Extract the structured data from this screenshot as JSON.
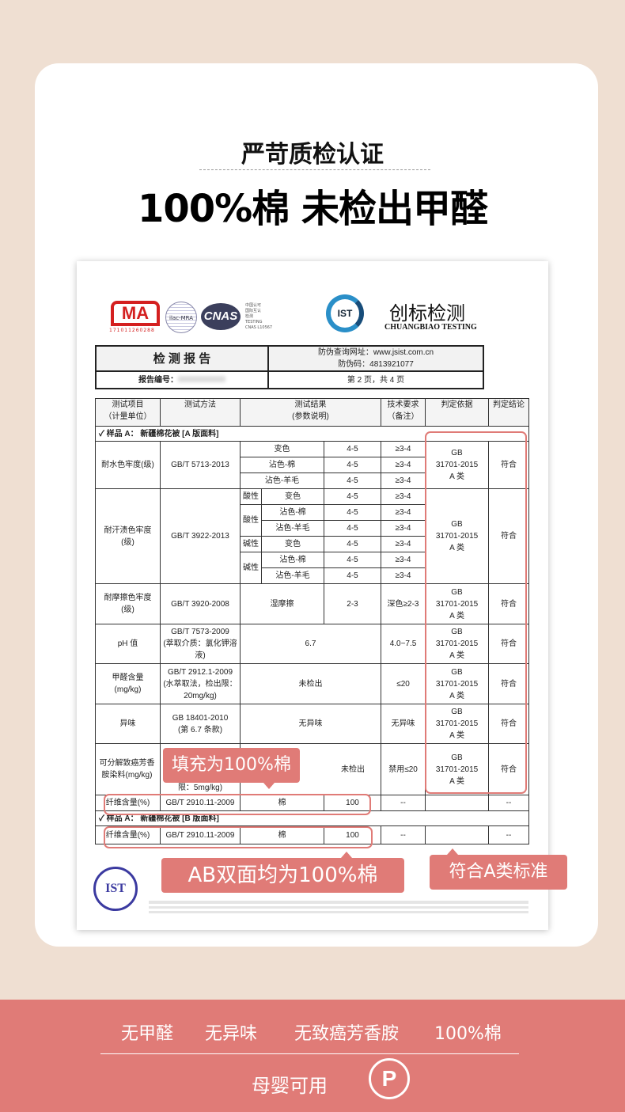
{
  "header": {
    "subtitle": "严苛质检认证",
    "title": "100%棉 未检出甲醛"
  },
  "logos": {
    "cma": "MA",
    "cma_number": "171011260288",
    "ilac": "ilac-MRA",
    "cnas": "CNAS",
    "cnas_text": "中国认可\n国际互认\n检测\nTESTING\nCNAS L10567",
    "ist": "IST",
    "brand_cn": "创标检测",
    "brand_en": "CHUANGBIAO TESTING"
  },
  "report": {
    "title": "检 测 报 告",
    "verify_url": "防伪查询网址：www.jsist.com.cn",
    "verify_code": "防伪码：4813921077",
    "number_label": "报告编号：",
    "page": "第 2 页，共 4 页"
  },
  "table": {
    "headers": [
      "测试项目\n（计量单位）",
      "测试方法",
      "测试结果\n(参数说明)",
      "技术要求\n（备注）",
      "判定依据",
      "判定结论"
    ],
    "sampleA": "✓     样品 A：  新疆棉花被  [A 版面料]",
    "sampleB": "✓     样品 A：  新疆棉花被  [B 版面料]",
    "standard": "GB\n31701-2015\nA 类",
    "pass": "符合",
    "water": {
      "item": "耐水色牢度(级)",
      "method": "GB/T 5713-2013",
      "rows": [
        [
          "变色",
          "4-5",
          "≥3-4"
        ],
        [
          "沾色-棉",
          "4-5",
          "≥3-4"
        ],
        [
          "沾色-羊毛",
          "4-5",
          "≥3-4"
        ]
      ]
    },
    "sweat": {
      "item": "耐汗渍色牢度\n(级)",
      "method": "GB/T 3922-2013",
      "acid": "酸性",
      "alkali": "碱性",
      "rows": [
        [
          "变色",
          "4-5",
          "≥3-4"
        ],
        [
          "沾色-棉",
          "4-5",
          "≥3-4"
        ],
        [
          "沾色-羊毛",
          "4-5",
          "≥3-4"
        ],
        [
          "变色",
          "4-5",
          "≥3-4"
        ],
        [
          "沾色-棉",
          "4-5",
          "≥3-4"
        ],
        [
          "沾色-羊毛",
          "4-5",
          "≥3-4"
        ]
      ]
    },
    "rub": {
      "item": "耐摩擦色牢度\n(级)",
      "method": "GB/T 3920-2008",
      "cond": "湿摩擦",
      "value": "2-3",
      "req": "深色≥2-3"
    },
    "ph": {
      "item": "pH 值",
      "method": "GB/T 7573-2009\n(萃取介质：氯化钾溶液)",
      "value": "6.7",
      "req": "4.0~7.5"
    },
    "formaldehyde": {
      "item": "甲醛含量\n(mg/kg)",
      "method": "GB/T 2912.1-2009\n(水萃取法，检出限：20mg/kg)",
      "value": "未检出",
      "req": "≤20"
    },
    "odor": {
      "item": "异味",
      "method": "GB 18401-2010\n(第 6.7 条款)",
      "value": "无异味",
      "req": "无异味"
    },
    "amine": {
      "item": "可分解致癌芳香胺染料(mg/kg)",
      "method": "限：5mg/kg)",
      "value": "未检出",
      "req": "禁用≤20"
    },
    "fiber": {
      "item": "纤维含量(%)",
      "method": "GB/T 2910.11-2009",
      "material": "棉",
      "value": "100",
      "req": "--",
      "result": "--"
    }
  },
  "callouts": {
    "filling": "填充为100%棉",
    "standard": "符合A类标准",
    "ab": "AB双面均为100%棉"
  },
  "seal": "IST",
  "footer": {
    "features": [
      "无甲醛",
      "无异味",
      "无致癌芳香胺",
      "100%棉"
    ],
    "slogan": "母婴可用",
    "logo": "P"
  },
  "colors": {
    "accent": "#e07b77",
    "background": "#efdfd2"
  }
}
